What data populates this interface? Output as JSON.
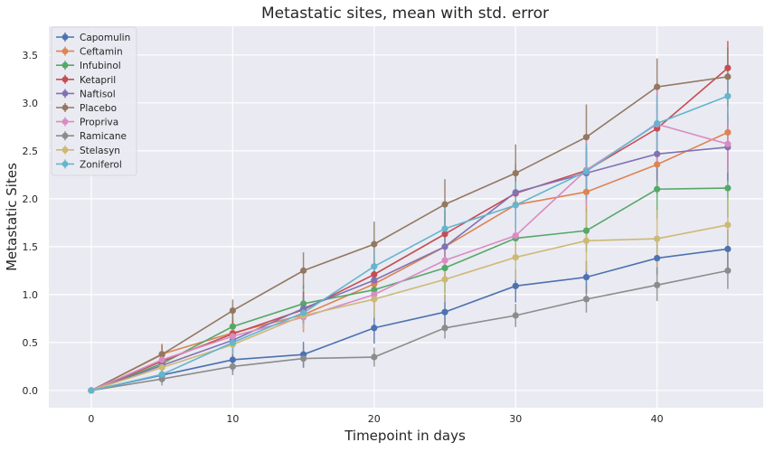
{
  "chart_data": {
    "type": "line",
    "title": "Metastatic sites, mean with std. error",
    "xlabel": "Timepoint in days",
    "ylabel": "Metastatic Sites",
    "x": [
      0,
      5,
      10,
      15,
      20,
      25,
      30,
      35,
      40,
      45
    ],
    "xlim": [
      -3,
      47.5
    ],
    "ylim": [
      -0.18,
      3.8
    ],
    "xticks": [
      0,
      10,
      20,
      30,
      40
    ],
    "yticks": [
      0.0,
      0.5,
      1.0,
      1.5,
      2.0,
      2.5,
      3.0,
      3.5
    ],
    "grid": true,
    "legend": "top-left",
    "series": [
      {
        "name": "Capomulin",
        "color": "#4c72b0",
        "values": [
          0.0,
          0.16,
          0.32,
          0.375,
          0.652,
          0.818,
          1.09,
          1.182,
          1.38,
          1.476
        ],
        "errors": [
          0.0,
          0.074,
          0.125,
          0.132,
          0.164,
          0.181,
          0.172,
          0.169,
          0.176,
          0.202
        ]
      },
      {
        "name": "Ceftamin",
        "color": "#dd8452",
        "values": [
          0.0,
          0.38,
          0.6,
          0.79,
          1.111,
          1.5,
          1.937,
          2.071,
          2.357,
          2.692
        ],
        "errors": [
          0.0,
          0.108,
          0.152,
          0.181,
          0.241,
          0.192,
          0.173,
          0.21,
          0.308,
          0.331
        ]
      },
      {
        "name": "Infubinol",
        "color": "#55a868",
        "values": [
          0.0,
          0.28,
          0.667,
          0.905,
          1.05,
          1.278,
          1.588,
          1.667,
          2.1,
          2.111
        ],
        "errors": [
          0.0,
          0.091,
          0.159,
          0.194,
          0.234,
          0.265,
          0.227,
          0.224,
          0.314,
          0.309
        ]
      },
      {
        "name": "Ketapril",
        "color": "#c44e52",
        "values": [
          0.0,
          0.304,
          0.59,
          0.842,
          1.21,
          1.632,
          2.056,
          2.294,
          2.733,
          3.364
        ],
        "errors": [
          0.0,
          0.098,
          0.142,
          0.191,
          0.237,
          0.245,
          0.252,
          0.247,
          0.323,
          0.282
        ]
      },
      {
        "name": "Naftisol",
        "color": "#8172b3",
        "values": [
          0.0,
          0.261,
          0.524,
          0.857,
          1.15,
          1.5,
          2.067,
          2.267,
          2.467,
          2.538
        ],
        "errors": [
          0.0,
          0.093,
          0.163,
          0.158,
          0.18,
          0.219,
          0.292,
          0.274,
          0.278,
          0.35
        ]
      },
      {
        "name": "Placebo",
        "color": "#937860",
        "values": [
          0.0,
          0.375,
          0.833,
          1.25,
          1.526,
          1.941,
          2.267,
          2.643,
          3.167,
          3.273
        ],
        "errors": [
          0.0,
          0.1,
          0.115,
          0.191,
          0.236,
          0.263,
          0.3,
          0.341,
          0.297,
          0.304
        ]
      },
      {
        "name": "Propriva",
        "color": "#da8bc3",
        "values": [
          0.0,
          0.32,
          0.565,
          0.765,
          1.0,
          1.357,
          1.615,
          2.3,
          2.778,
          2.571
        ],
        "errors": [
          0.0,
          0.095,
          0.105,
          0.136,
          0.171,
          0.199,
          0.266,
          0.37,
          0.4,
          0.3
        ]
      },
      {
        "name": "Ramicane",
        "color": "#8c8c8c",
        "values": [
          0.0,
          0.12,
          0.25,
          0.333,
          0.348,
          0.652,
          0.782,
          0.952,
          1.1,
          1.25
        ],
        "errors": [
          0.0,
          0.067,
          0.091,
          0.098,
          0.1,
          0.111,
          0.121,
          0.14,
          0.167,
          0.191
        ]
      },
      {
        "name": "Stelasyn",
        "color": "#ccb974",
        "values": [
          0.0,
          0.24,
          0.478,
          0.782,
          0.952,
          1.158,
          1.389,
          1.562,
          1.583,
          1.727
        ],
        "errors": [
          0.0,
          0.09,
          0.099,
          0.146,
          0.195,
          0.235,
          0.24,
          0.322,
          0.3,
          0.287
        ]
      },
      {
        "name": "Zoniferol",
        "color": "#64b5cd",
        "values": [
          0.0,
          0.167,
          0.5,
          0.81,
          1.294,
          1.688,
          1.933,
          2.286,
          2.786,
          3.071
        ],
        "errors": [
          0.0,
          0.077,
          0.109,
          0.111,
          0.167,
          0.237,
          0.248,
          0.285,
          0.299,
          0.287
        ]
      }
    ]
  }
}
